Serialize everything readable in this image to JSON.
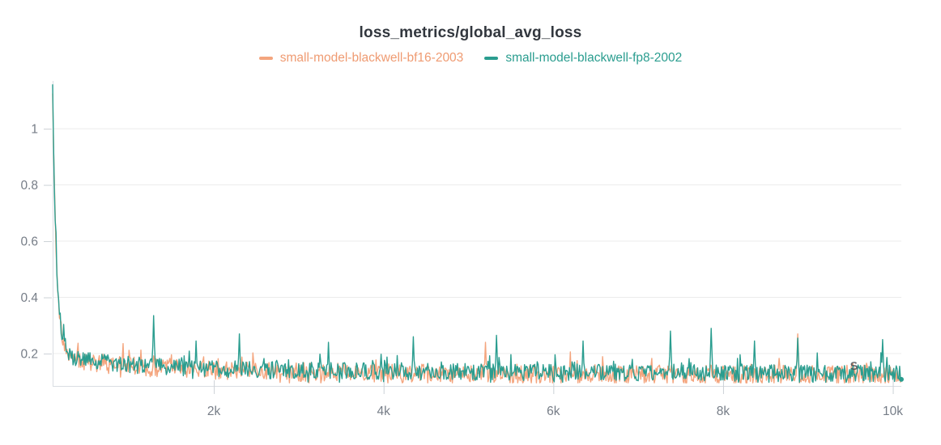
{
  "header": {
    "title": "loss_metrics/global_avg_loss"
  },
  "artifact": {
    "text": "S"
  },
  "chart_data": {
    "type": "line",
    "title": "loss_metrics/global_avg_loss",
    "xlabel": "",
    "ylabel": "",
    "legend_position": "top-center",
    "grid": "horizontal",
    "background_color": "#ffffff",
    "x_axis": {
      "range": [
        100,
        10100
      ],
      "ticks": [
        2000,
        4000,
        6000,
        8000,
        10000
      ],
      "tick_labels": [
        "2k",
        "4k",
        "6k",
        "8k",
        "10k"
      ]
    },
    "y_axis": {
      "range": [
        0.085,
        1.17
      ],
      "ticks": [
        0.2,
        0.4,
        0.6,
        0.8,
        1
      ],
      "tick_labels": [
        "0.2",
        "0.4",
        "0.6",
        "0.8",
        "1"
      ]
    },
    "colors": {
      "grid": "#ececec",
      "axis": "#d9dde2",
      "tick": "#ccd1d6",
      "tick_text": "#767d87",
      "title_text": "#32373e"
    },
    "generator": {
      "step_start": 100,
      "step_end": 10100,
      "step_increment": 10,
      "trend": {
        "base": 0.13,
        "components": [
          [
            0.025,
            3000
          ],
          [
            0.045,
            700
          ],
          [
            0.95,
            45
          ]
        ]
      }
    },
    "series": [
      {
        "name": "small-model-blackwell-bf16-2003",
        "color": "#f4a57e",
        "text_color": "#ef9b72",
        "initial_value": 1.15,
        "final_value": 0.13,
        "seed": 1337,
        "noise": {
          "amp": 0.066,
          "bias": -0.005,
          "bump_chance": 0.09,
          "bump_amp": 0.05,
          "dip_chance": 0.13,
          "dip_amp": 0.028,
          "floor": 0.096
        },
        "spikes": [
          [
            5200,
            0.24
          ],
          [
            8880,
            0.27
          ]
        ]
      },
      {
        "name": "small-model-blackwell-fp8-2002",
        "color": "#2a9d8f",
        "text_color": "#2a9d8f",
        "initial_value": 1.15,
        "final_value": 0.13,
        "seed": 42,
        "noise": {
          "amp": 0.06,
          "bias": 0.0,
          "bump_chance": 0.12,
          "bump_amp": 0.05,
          "dip_chance": 0.1,
          "dip_amp": 0.025,
          "floor": 0.098
        },
        "spikes": [
          [
            1290,
            0.335
          ],
          [
            1790,
            0.245
          ],
          [
            2300,
            0.27
          ],
          [
            3350,
            0.24
          ],
          [
            4350,
            0.26
          ],
          [
            5330,
            0.265
          ],
          [
            6350,
            0.245
          ],
          [
            7380,
            0.28
          ],
          [
            7860,
            0.29
          ],
          [
            8370,
            0.245
          ],
          [
            8880,
            0.255
          ],
          [
            9880,
            0.25
          ]
        ]
      }
    ]
  }
}
